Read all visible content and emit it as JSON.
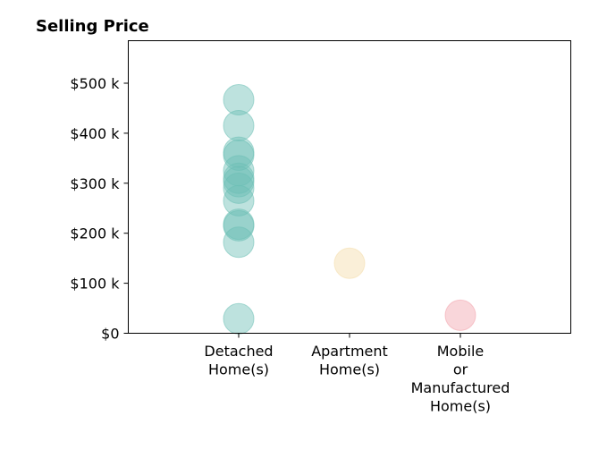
{
  "chart_data": {
    "type": "scatter",
    "title": "Selling Price",
    "xlabel": "",
    "ylabel": "",
    "categories": [
      [
        "Detached",
        "Home(s)"
      ],
      [
        "Apartment",
        "Home(s)"
      ],
      [
        "Mobile",
        "or",
        "Manufactured",
        "Home(s)"
      ]
    ],
    "ylim": [
      0,
      585000
    ],
    "yticks": [
      0,
      100000,
      200000,
      300000,
      400000,
      500000
    ],
    "ytick_labels": [
      "$0",
      "$100 k",
      "$200 k",
      "$300 k",
      "$400 k",
      "$500 k"
    ],
    "grid": false,
    "legend": "none",
    "series": [
      {
        "category_index": 0,
        "color": "#6cbfb5",
        "values": [
          467000,
          415000,
          362000,
          356000,
          325000,
          310000,
          303000,
          290000,
          265000,
          218000,
          215000,
          182000,
          29000
        ]
      },
      {
        "category_index": 1,
        "color": "#f4dca9",
        "values": [
          140000
        ]
      },
      {
        "category_index": 2,
        "color": "#f2a3ac",
        "values": [
          36000
        ]
      }
    ]
  }
}
